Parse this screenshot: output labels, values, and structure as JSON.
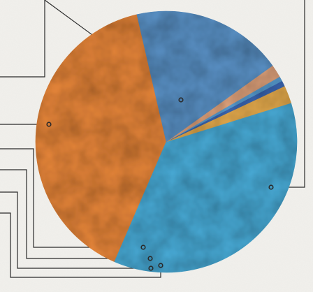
{
  "chart_data": {
    "type": "pie",
    "title": "",
    "labels_visible": false,
    "start_angle_deg": 103,
    "direction": "counterclockwise",
    "slices": [
      {
        "label": "",
        "value": 39.9,
        "color": "#e9873a"
      },
      {
        "label": "",
        "value": 36.3,
        "color": "#49acd8"
      },
      {
        "label": "",
        "value": 2.2,
        "color": "#e8ad4e"
      },
      {
        "label": "",
        "value": 0.7,
        "color": "#3c68b5"
      },
      {
        "label": "",
        "value": 0.6,
        "color": "#5aa0d5"
      },
      {
        "label": "",
        "value": 1.6,
        "color": "#e0a37c"
      },
      {
        "label": "",
        "value": 18.7,
        "color": "#5b93c8"
      }
    ],
    "legend": "none"
  },
  "colors": {
    "background": "#f1f0ec",
    "leader_line": "#2a2a2a"
  }
}
